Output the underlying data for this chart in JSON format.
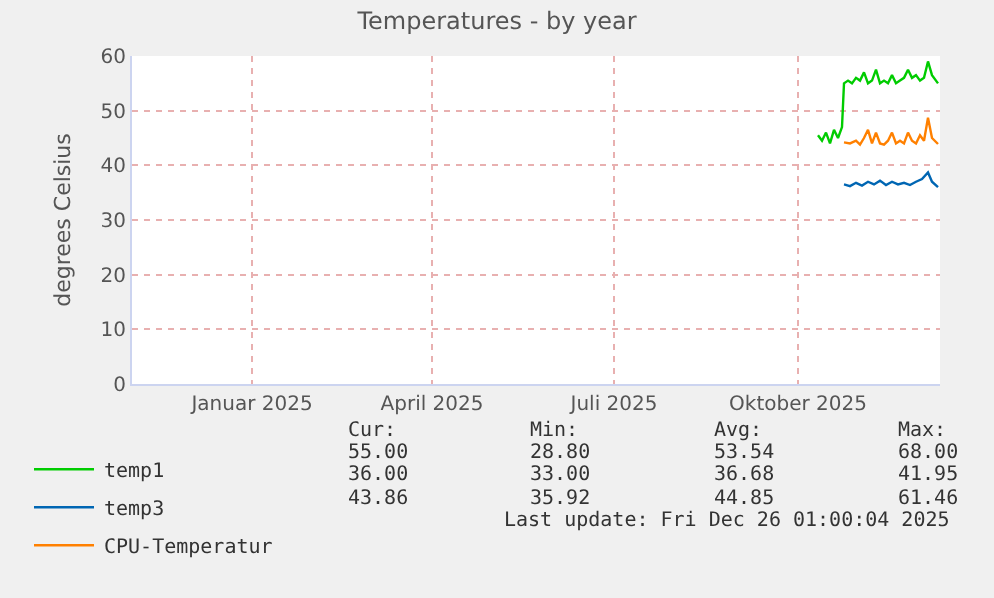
{
  "chart_data": {
    "type": "line",
    "title": "Temperatures - by year",
    "ylabel": "degrees Celsius",
    "xlim": [
      "2024-11-17",
      "2025-12-26"
    ],
    "xticks": [
      {
        "value": "2025-01-16",
        "label": "Januar 2025"
      },
      {
        "value": "2025-04-16",
        "label": "April 2025"
      },
      {
        "value": "2025-07-16",
        "label": "Juli 2025"
      },
      {
        "value": "2025-10-16",
        "label": "Oktober 2025"
      }
    ],
    "ylim": [
      0,
      60
    ],
    "yticks": [
      0,
      10,
      20,
      30,
      40,
      50,
      60
    ],
    "grid": true,
    "legend": "bottom left",
    "marker": "none",
    "line_style": "solid",
    "series": [
      {
        "name": "temp1",
        "color": "#00cc00",
        "x": [
          "2025-10-26",
          "2025-10-28",
          "2025-10-30",
          "2025-11-01",
          "2025-11-03",
          "2025-11-05",
          "2025-11-07",
          "2025-11-08",
          "2025-11-10",
          "2025-11-12",
          "2025-11-14",
          "2025-11-16",
          "2025-11-18",
          "2025-11-20",
          "2025-11-22",
          "2025-11-24",
          "2025-11-26",
          "2025-11-28",
          "2025-11-30",
          "2025-12-02",
          "2025-12-04",
          "2025-12-06",
          "2025-12-08",
          "2025-12-10",
          "2025-12-12",
          "2025-12-14",
          "2025-12-16",
          "2025-12-18",
          "2025-12-20",
          "2025-12-22",
          "2025-12-25"
        ],
        "values": [
          45.5,
          44.5,
          46,
          44,
          46.5,
          45,
          47,
          55,
          55.5,
          55,
          56,
          55.5,
          57,
          55,
          55.5,
          57.5,
          55,
          55.5,
          55,
          56.5,
          55,
          55.5,
          56,
          57.5,
          56,
          56.5,
          55.5,
          56,
          59,
          56.5,
          55
        ]
      },
      {
        "name": "temp3",
        "color": "#0066b3",
        "x": [
          "2025-11-08",
          "2025-11-11",
          "2025-11-14",
          "2025-11-17",
          "2025-11-20",
          "2025-11-23",
          "2025-11-26",
          "2025-11-29",
          "2025-12-02",
          "2025-12-05",
          "2025-12-08",
          "2025-12-11",
          "2025-12-14",
          "2025-12-17",
          "2025-12-20",
          "2025-12-22",
          "2025-12-25"
        ],
        "values": [
          36.5,
          36.2,
          36.8,
          36.3,
          37,
          36.5,
          37.2,
          36.4,
          37,
          36.5,
          36.8,
          36.4,
          37,
          37.5,
          38.7,
          37,
          36
        ]
      },
      {
        "name": "CPU-Temperatur",
        "color": "#ff8000",
        "x": [
          "2025-11-08",
          "2025-11-11",
          "2025-11-14",
          "2025-11-16",
          "2025-11-18",
          "2025-11-20",
          "2025-11-22",
          "2025-11-24",
          "2025-11-26",
          "2025-11-28",
          "2025-11-30",
          "2025-12-02",
          "2025-12-04",
          "2025-12-06",
          "2025-12-08",
          "2025-12-10",
          "2025-12-12",
          "2025-12-14",
          "2025-12-16",
          "2025-12-18",
          "2025-12-20",
          "2025-12-22",
          "2025-12-25"
        ],
        "values": [
          44.2,
          44,
          44.5,
          43.8,
          45,
          46.5,
          44,
          46,
          44,
          43.8,
          44.5,
          46,
          44,
          44.5,
          44,
          46,
          44.5,
          44,
          45.5,
          44.5,
          48.7,
          45,
          43.9
        ]
      }
    ],
    "annotations": [
      "Cur:",
      "Min:",
      "Avg:",
      "Max:",
      "55.00",
      "28.80",
      "53.54",
      "68.00",
      "36.00",
      "33.00",
      "36.68",
      "41.95",
      "43.86",
      "35.92",
      "44.85",
      "61.46",
      "Last update: Fri Dec 26 01:00:04 2025"
    ]
  }
}
